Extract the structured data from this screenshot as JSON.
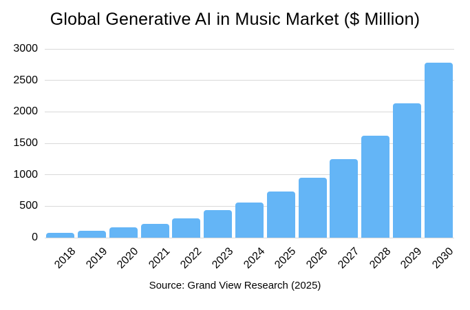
{
  "source": "Source: Grand View Research (2025)",
  "colors": {
    "bar": "#64B5F6",
    "gridline": "#D9D9D9",
    "text": "#000000",
    "background": "#FFFFFF"
  },
  "chart_data": {
    "type": "bar",
    "title": "Global Generative AI in Music Market ($ Million)",
    "categories": [
      "2018",
      "2019",
      "2020",
      "2021",
      "2022",
      "2023",
      "2024",
      "2025",
      "2026",
      "2027",
      "2028",
      "2029",
      "2030"
    ],
    "values": [
      75,
      110,
      160,
      220,
      310,
      435,
      560,
      730,
      950,
      1245,
      1625,
      2130,
      2780
    ],
    "xlabel": "",
    "ylabel": "",
    "ylim": [
      0,
      3000
    ],
    "yticks": [
      0,
      500,
      1000,
      1500,
      2000,
      2500,
      3000
    ],
    "grid": true,
    "legend": false,
    "x_tick_rotation_deg": -45
  }
}
